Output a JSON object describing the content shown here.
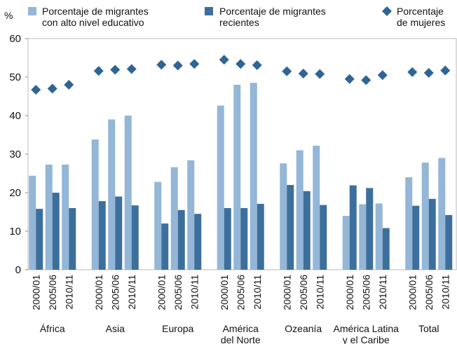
{
  "chart_data": {
    "type": "bar",
    "y_label": "%",
    "groups": [
      [
        "África"
      ],
      [
        "Asia"
      ],
      [
        "Europa"
      ],
      [
        "América",
        "del Norte"
      ],
      [
        "Ozeanía"
      ],
      [
        "América Latina",
        "y el Caribe"
      ],
      [
        "Total"
      ]
    ],
    "categories": [
      "2000/01",
      "2005/06",
      "2010/11",
      "2000/01",
      "2005/06",
      "2010/11",
      "2000/01",
      "2005/06",
      "2010/11",
      "2000/01",
      "2005/06",
      "2010/11",
      "2000/01",
      "2005/06",
      "2010/11",
      "2000/01",
      "2005/06",
      "2010/11",
      "2000/01",
      "2005/06",
      "2010/11"
    ],
    "series": [
      {
        "name": "Porcentaje de migrantes con alto nivel educativo",
        "color": "#94b6d7",
        "marker": "bar",
        "values": [
          24.4,
          27.3,
          27.3,
          33.8,
          39.0,
          40.0,
          22.8,
          26.6,
          28.4,
          42.6,
          48.0,
          48.5,
          27.6,
          31.0,
          32.2,
          14.0,
          17.0,
          17.2,
          24.0,
          27.8,
          29.0
        ]
      },
      {
        "name": "Porcentaje de migrantes recientes",
        "color": "#3d6f9c",
        "marker": "bar",
        "values": [
          15.8,
          20.0,
          16.0,
          17.8,
          19.0,
          16.7,
          12.0,
          15.5,
          14.5,
          16.0,
          16.0,
          17.1,
          22.0,
          20.4,
          16.8,
          21.9,
          21.2,
          10.8,
          16.6,
          18.4,
          14.2
        ]
      },
      {
        "name": "Porcentaje de mujeres",
        "color": "#2f6595",
        "marker": "diamond",
        "values": [
          46.7,
          47.0,
          48.0,
          51.6,
          51.9,
          52.1,
          53.2,
          53.0,
          53.4,
          54.5,
          53.4,
          53.1,
          51.5,
          50.9,
          50.8,
          49.5,
          49.2,
          50.5,
          51.3,
          51.1,
          51.7
        ]
      }
    ],
    "ylim": [
      0,
      60
    ],
    "yticks": [
      0,
      10,
      20,
      30,
      40,
      50,
      60
    ],
    "grid": false
  }
}
